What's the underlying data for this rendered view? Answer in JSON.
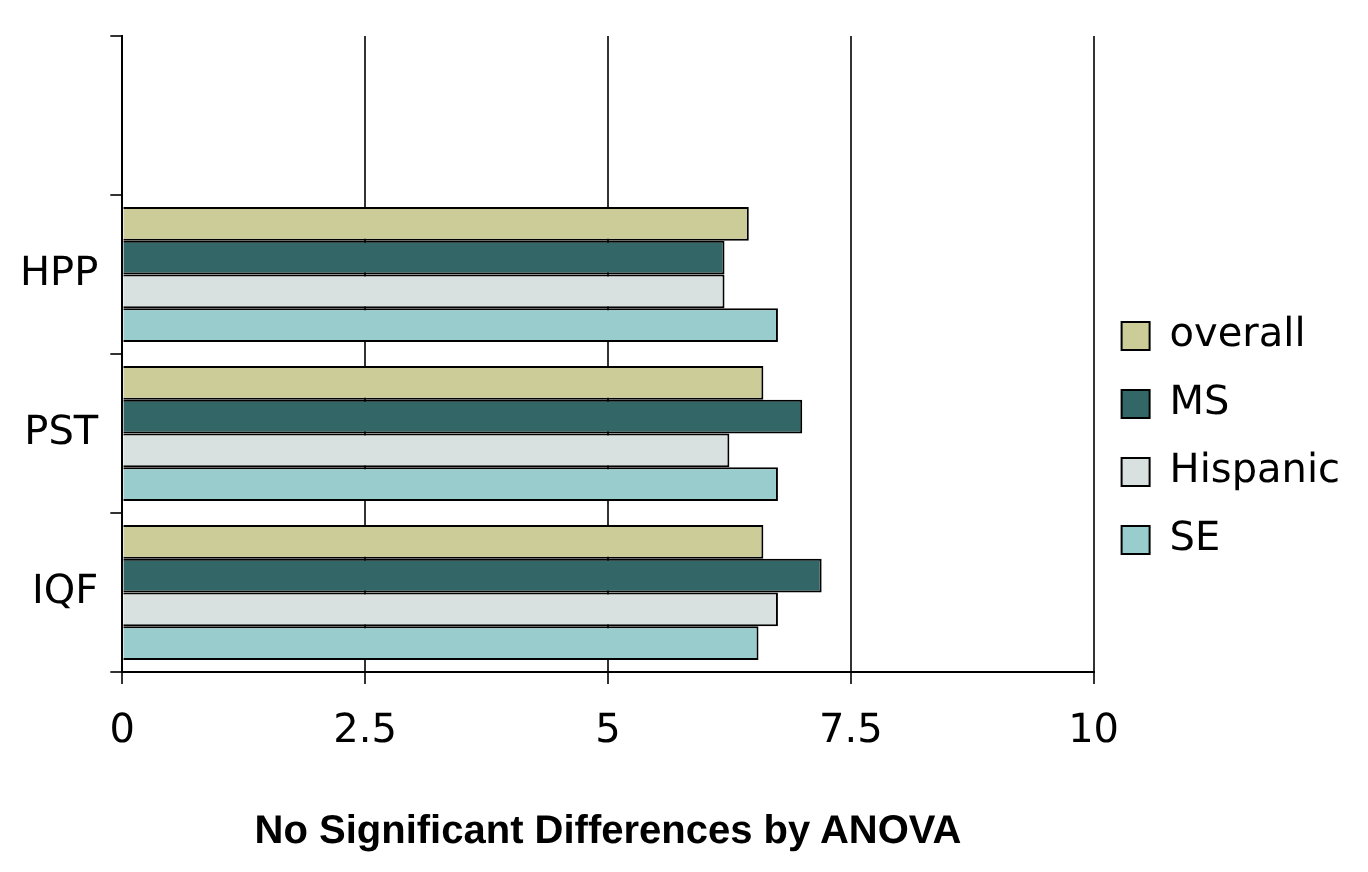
{
  "chart_data": {
    "type": "bar",
    "orientation": "horizontal",
    "xlabel": "No Significant Differences by ANOVA",
    "categories": [
      null,
      "HPP",
      "PST",
      "IQF"
    ],
    "series": [
      {
        "name": "overall",
        "color": "#cccc99",
        "values": [
          null,
          6.45,
          6.6,
          6.6
        ]
      },
      {
        "name": "MS",
        "color": "#336666",
        "values": [
          null,
          6.2,
          7.0,
          7.2
        ]
      },
      {
        "name": "Hispanic",
        "color": "#d9e0e0",
        "values": [
          null,
          6.2,
          6.25,
          6.75
        ]
      },
      {
        "name": "SE",
        "color": "#99cccc",
        "values": [
          null,
          6.75,
          6.75,
          6.55
        ]
      }
    ],
    "xlim": [
      0,
      10
    ],
    "xticks": [
      0,
      2.5,
      5,
      7.5,
      10
    ],
    "grid": "x",
    "legend": "right"
  }
}
